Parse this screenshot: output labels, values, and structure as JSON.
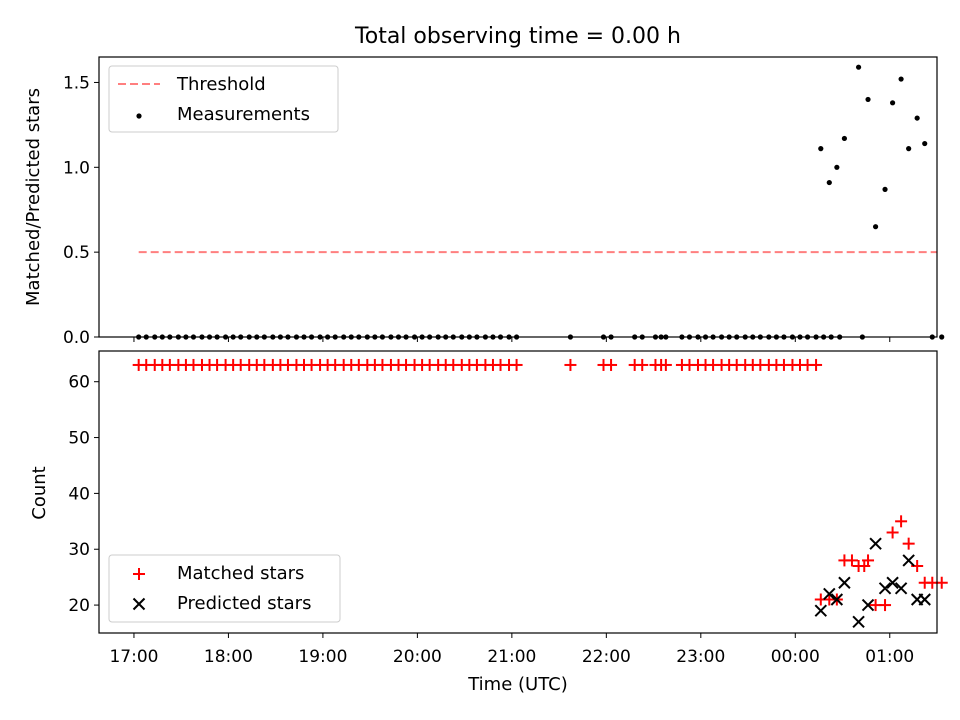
{
  "figure_title": "Total observing time = 0.00 h",
  "chart_data": [
    {
      "type": "scatter",
      "panel": "top",
      "title": "Total observing time = 0.00 h",
      "xlabel": "",
      "ylabel": "Matched/Predicted stars",
      "x_unit": "hours since 17:00 UTC",
      "xlim": [
        -0.37,
        8.5
      ],
      "ylim": [
        0,
        1.65
      ],
      "yticks": [
        0.0,
        0.5,
        1.0,
        1.5
      ],
      "yticklabels": [
        "0.0",
        "0.5",
        "1.0",
        "1.5"
      ],
      "grid": false,
      "legend": {
        "position": "upper left"
      },
      "series": [
        {
          "name": "Threshold",
          "kind": "line",
          "style": "dashed",
          "color": "#ff7f7f",
          "x": [
            0.05,
            8.5
          ],
          "y": [
            0.5,
            0.5
          ]
        },
        {
          "name": "Measurements",
          "kind": "scatter",
          "color": "#000000",
          "points": [
            [
              0.05,
              0
            ],
            [
              0.13,
              0
            ],
            [
              0.22,
              0
            ],
            [
              0.3,
              0
            ],
            [
              0.38,
              0
            ],
            [
              0.47,
              0
            ],
            [
              0.55,
              0
            ],
            [
              0.63,
              0
            ],
            [
              0.72,
              0
            ],
            [
              0.8,
              0
            ],
            [
              0.88,
              0
            ],
            [
              0.97,
              0
            ],
            [
              1.05,
              0
            ],
            [
              1.13,
              0
            ],
            [
              1.22,
              0
            ],
            [
              1.3,
              0
            ],
            [
              1.38,
              0
            ],
            [
              1.47,
              0
            ],
            [
              1.55,
              0
            ],
            [
              1.63,
              0
            ],
            [
              1.72,
              0
            ],
            [
              1.8,
              0
            ],
            [
              1.88,
              0
            ],
            [
              1.97,
              0
            ],
            [
              2.05,
              0
            ],
            [
              2.13,
              0
            ],
            [
              2.22,
              0
            ],
            [
              2.3,
              0
            ],
            [
              2.38,
              0
            ],
            [
              2.47,
              0
            ],
            [
              2.55,
              0
            ],
            [
              2.63,
              0
            ],
            [
              2.72,
              0
            ],
            [
              2.8,
              0
            ],
            [
              2.88,
              0
            ],
            [
              2.97,
              0
            ],
            [
              3.05,
              0
            ],
            [
              3.13,
              0
            ],
            [
              3.22,
              0
            ],
            [
              3.3,
              0
            ],
            [
              3.38,
              0
            ],
            [
              3.47,
              0
            ],
            [
              3.55,
              0
            ],
            [
              3.63,
              0
            ],
            [
              3.72,
              0
            ],
            [
              3.8,
              0
            ],
            [
              3.88,
              0
            ],
            [
              3.97,
              0
            ],
            [
              4.05,
              0
            ],
            [
              4.62,
              0
            ],
            [
              4.97,
              0
            ],
            [
              5.05,
              0
            ],
            [
              5.3,
              0
            ],
            [
              5.38,
              0
            ],
            [
              5.52,
              0
            ],
            [
              5.58,
              0
            ],
            [
              5.63,
              0
            ],
            [
              5.8,
              0
            ],
            [
              5.88,
              0
            ],
            [
              5.97,
              0
            ],
            [
              6.05,
              0
            ],
            [
              6.13,
              0
            ],
            [
              6.22,
              0
            ],
            [
              6.3,
              0
            ],
            [
              6.38,
              0
            ],
            [
              6.47,
              0
            ],
            [
              6.55,
              0
            ],
            [
              6.63,
              0
            ],
            [
              6.72,
              0
            ],
            [
              6.8,
              0
            ],
            [
              6.88,
              0
            ],
            [
              6.97,
              0
            ],
            [
              7.05,
              0
            ],
            [
              7.13,
              0
            ],
            [
              7.22,
              0
            ],
            [
              7.3,
              0
            ],
            [
              7.38,
              0
            ],
            [
              7.47,
              0
            ],
            [
              7.71,
              0
            ],
            [
              8.45,
              0
            ],
            [
              8.55,
              0
            ],
            [
              7.27,
              1.11
            ],
            [
              7.36,
              0.91
            ],
            [
              7.44,
              1.0
            ],
            [
              7.52,
              1.17
            ],
            [
              7.67,
              1.59
            ],
            [
              7.77,
              1.4
            ],
            [
              7.85,
              0.65
            ],
            [
              7.95,
              0.87
            ],
            [
              8.03,
              1.38
            ],
            [
              8.12,
              1.52
            ],
            [
              8.2,
              1.11
            ],
            [
              8.29,
              1.29
            ],
            [
              8.37,
              1.14
            ]
          ]
        }
      ]
    },
    {
      "type": "scatter",
      "panel": "bottom",
      "title": "",
      "xlabel": "Time (UTC)",
      "ylabel": "Count",
      "x_unit": "hours since 17:00 UTC",
      "xlim": [
        -0.37,
        8.5
      ],
      "ylim": [
        15,
        65.5
      ],
      "yticks": [
        20,
        30,
        40,
        50,
        60
      ],
      "yticklabels": [
        "20",
        "30",
        "40",
        "50",
        "60"
      ],
      "xticks": [
        0,
        1,
        2,
        3,
        4,
        5,
        6,
        7,
        8
      ],
      "xticklabels": [
        "17:00",
        "18:00",
        "19:00",
        "20:00",
        "21:00",
        "22:00",
        "23:00",
        "00:00",
        "01:00"
      ],
      "grid": false,
      "legend": {
        "position": "lower left"
      },
      "series": [
        {
          "name": "Matched stars",
          "marker": "plus",
          "color": "#ff0000",
          "points": [
            [
              0.05,
              63
            ],
            [
              0.13,
              63
            ],
            [
              0.22,
              63
            ],
            [
              0.3,
              63
            ],
            [
              0.38,
              63
            ],
            [
              0.47,
              63
            ],
            [
              0.55,
              63
            ],
            [
              0.63,
              63
            ],
            [
              0.72,
              63
            ],
            [
              0.8,
              63
            ],
            [
              0.88,
              63
            ],
            [
              0.97,
              63
            ],
            [
              1.05,
              63
            ],
            [
              1.13,
              63
            ],
            [
              1.22,
              63
            ],
            [
              1.3,
              63
            ],
            [
              1.38,
              63
            ],
            [
              1.47,
              63
            ],
            [
              1.55,
              63
            ],
            [
              1.63,
              63
            ],
            [
              1.72,
              63
            ],
            [
              1.8,
              63
            ],
            [
              1.88,
              63
            ],
            [
              1.97,
              63
            ],
            [
              2.05,
              63
            ],
            [
              2.13,
              63
            ],
            [
              2.22,
              63
            ],
            [
              2.3,
              63
            ],
            [
              2.38,
              63
            ],
            [
              2.47,
              63
            ],
            [
              2.55,
              63
            ],
            [
              2.63,
              63
            ],
            [
              2.72,
              63
            ],
            [
              2.8,
              63
            ],
            [
              2.88,
              63
            ],
            [
              2.97,
              63
            ],
            [
              3.05,
              63
            ],
            [
              3.13,
              63
            ],
            [
              3.22,
              63
            ],
            [
              3.3,
              63
            ],
            [
              3.38,
              63
            ],
            [
              3.47,
              63
            ],
            [
              3.55,
              63
            ],
            [
              3.63,
              63
            ],
            [
              3.72,
              63
            ],
            [
              3.8,
              63
            ],
            [
              3.88,
              63
            ],
            [
              3.97,
              63
            ],
            [
              4.05,
              63
            ],
            [
              4.62,
              63
            ],
            [
              4.97,
              63
            ],
            [
              5.05,
              63
            ],
            [
              5.3,
              63
            ],
            [
              5.38,
              63
            ],
            [
              5.52,
              63
            ],
            [
              5.58,
              63
            ],
            [
              5.63,
              63
            ],
            [
              5.8,
              63
            ],
            [
              5.88,
              63
            ],
            [
              5.97,
              63
            ],
            [
              6.05,
              63
            ],
            [
              6.13,
              63
            ],
            [
              6.22,
              63
            ],
            [
              6.3,
              63
            ],
            [
              6.38,
              63
            ],
            [
              6.47,
              63
            ],
            [
              6.55,
              63
            ],
            [
              6.63,
              63
            ],
            [
              6.72,
              63
            ],
            [
              6.8,
              63
            ],
            [
              6.88,
              63
            ],
            [
              6.97,
              63
            ],
            [
              7.05,
              63
            ],
            [
              7.13,
              63
            ],
            [
              7.22,
              63
            ],
            [
              7.27,
              21
            ],
            [
              7.36,
              21
            ],
            [
              7.44,
              21
            ],
            [
              7.52,
              28
            ],
            [
              7.6,
              28
            ],
            [
              7.67,
              27
            ],
            [
              7.73,
              27
            ],
            [
              7.77,
              28
            ],
            [
              7.85,
              20
            ],
            [
              7.95,
              20
            ],
            [
              8.03,
              33
            ],
            [
              8.12,
              35
            ],
            [
              8.2,
              31
            ],
            [
              8.29,
              27
            ],
            [
              8.37,
              24
            ],
            [
              8.45,
              24
            ],
            [
              8.55,
              24
            ]
          ]
        },
        {
          "name": "Predicted stars",
          "marker": "x",
          "color": "#000000",
          "points": [
            [
              7.27,
              19
            ],
            [
              7.36,
              22
            ],
            [
              7.44,
              21
            ],
            [
              7.52,
              24
            ],
            [
              7.67,
              17
            ],
            [
              7.77,
              20
            ],
            [
              7.85,
              31
            ],
            [
              7.95,
              23
            ],
            [
              8.03,
              24
            ],
            [
              8.12,
              23
            ],
            [
              8.2,
              28
            ],
            [
              8.29,
              21
            ],
            [
              8.37,
              21
            ]
          ]
        }
      ]
    }
  ]
}
